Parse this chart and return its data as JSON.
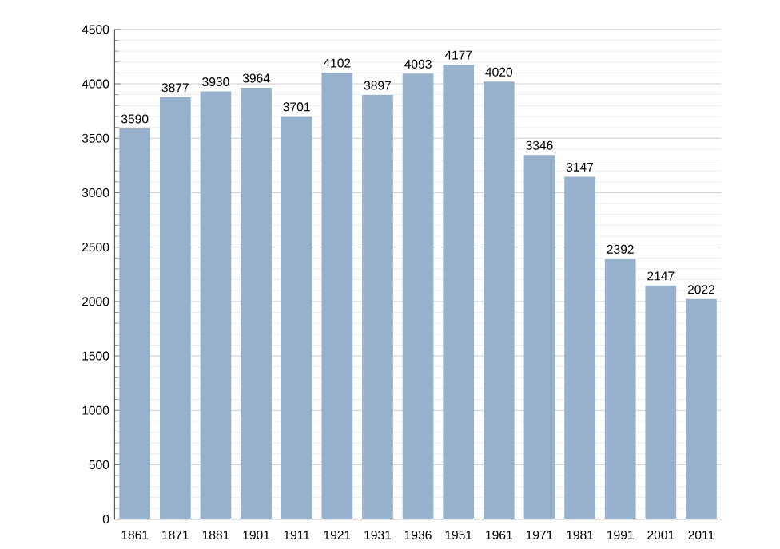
{
  "chart_data": {
    "type": "bar",
    "categories": [
      "1861",
      "1871",
      "1881",
      "1901",
      "1911",
      "1921",
      "1931",
      "1936",
      "1951",
      "1961",
      "1971",
      "1981",
      "1991",
      "2001",
      "2011"
    ],
    "values": [
      3590,
      3877,
      3930,
      3964,
      3701,
      4102,
      3897,
      4093,
      4177,
      4020,
      3346,
      3147,
      2392,
      2147,
      2022
    ],
    "color": "#97b1cc",
    "ylim": [
      0,
      4500
    ],
    "yticks": [
      0,
      500,
      1000,
      1500,
      2000,
      2500,
      3000,
      3500,
      4000,
      4500
    ],
    "grid": "y",
    "data_labels": true
  }
}
